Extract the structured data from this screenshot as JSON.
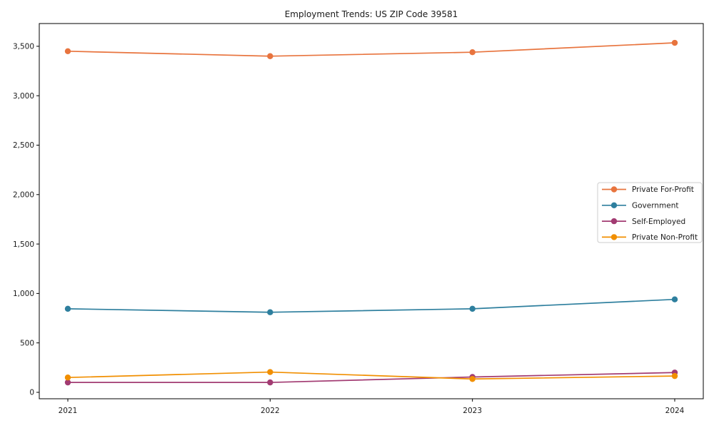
{
  "title": "Employment Trends: US ZIP Code 39581",
  "chart_data": {
    "type": "line",
    "title": "Employment Trends: US ZIP Code 39581",
    "x": [
      2021,
      2022,
      2023,
      2024
    ],
    "x_tick_labels": [
      "2021",
      "2022",
      "2023",
      "2024"
    ],
    "y_ticks": [
      0,
      500,
      1000,
      1500,
      2000,
      2500,
      3000,
      3500
    ],
    "y_tick_labels": [
      "0",
      "500",
      "1,000",
      "1,500",
      "2,000",
      "2,500",
      "3,000",
      "3,500"
    ],
    "ylim": [
      -65,
      3730
    ],
    "x_padding_fraction": 0.043,
    "grid": false,
    "legend_position": "center-right",
    "background_color": "#ffffff",
    "axis_color": "#000000",
    "series": [
      {
        "name": "Private For-Profit",
        "color": "#E8743E",
        "values": [
          3450,
          3400,
          3440,
          3535
        ]
      },
      {
        "name": "Government",
        "color": "#2E7F9E",
        "values": [
          845,
          810,
          845,
          940
        ]
      },
      {
        "name": "Self-Employed",
        "color": "#A23B72",
        "values": [
          100,
          100,
          155,
          200
        ]
      },
      {
        "name": "Private Non-Profit",
        "color": "#F18F01",
        "values": [
          150,
          205,
          135,
          165
        ]
      }
    ],
    "marker": "circle",
    "marker_radius": 4.2,
    "line_width": 1.7,
    "legend": {
      "labels": [
        "Private For-Profit",
        "Government",
        "Self-Employed",
        "Private Non-Profit"
      ],
      "border_color": "#cccccc",
      "background_color": "#ffffff"
    }
  }
}
